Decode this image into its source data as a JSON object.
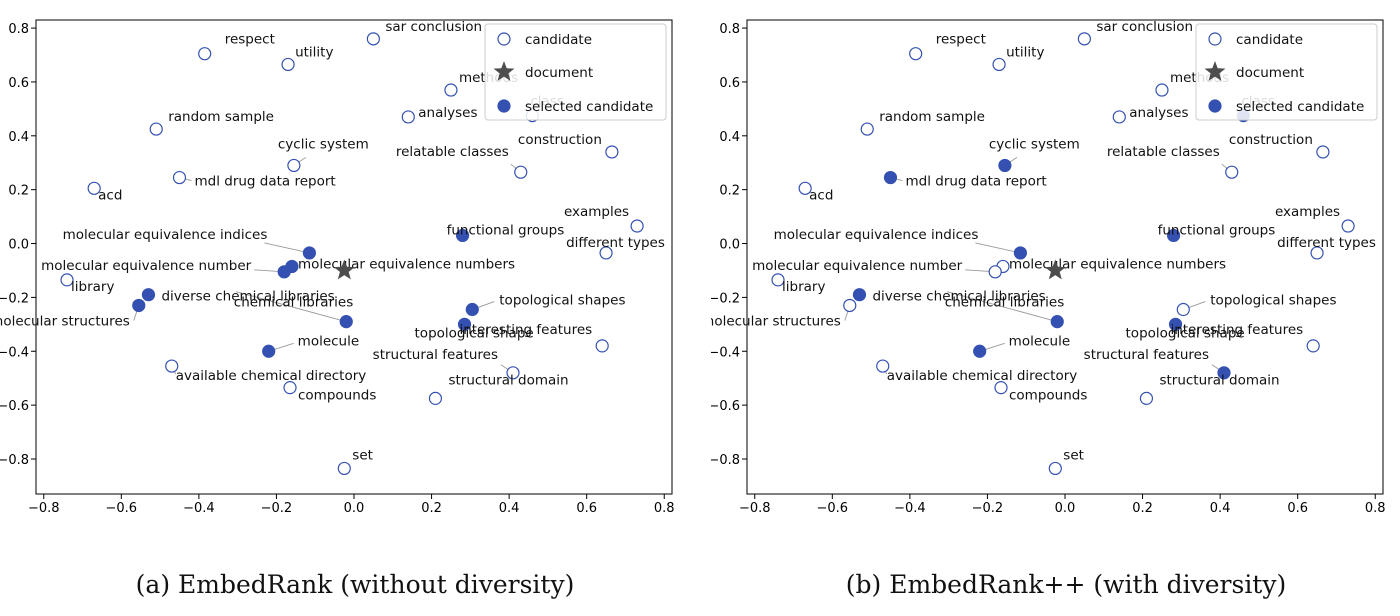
{
  "colors": {
    "marker": "#3451b2",
    "star": "#4d4d4d",
    "leader": "#999999"
  },
  "legend": {
    "candidate": "candidate",
    "document": "document",
    "selected": "selected candidate"
  },
  "captions": {
    "a": "(a) EmbedRank (without diversity)",
    "b": "(b) EmbedRank++ (with diversity)"
  },
  "chart_data": [
    {
      "type": "scatter",
      "xlim": [
        -0.82,
        0.82
      ],
      "ylim": [
        -0.93,
        0.83
      ],
      "xticks": [
        -0.8,
        -0.6,
        -0.4,
        -0.2,
        0.0,
        0.2,
        0.4,
        0.6,
        0.8
      ],
      "yticks": [
        -0.8,
        -0.6,
        -0.4,
        -0.2,
        0.0,
        0.2,
        0.4,
        0.6,
        0.8
      ],
      "xtick_labels": [
        "−0.8",
        "−0.6",
        "−0.4",
        "−0.2",
        "0.0",
        "0.2",
        "0.4",
        "0.6",
        "0.8"
      ],
      "ytick_labels": [
        "−0.8",
        "−0.6",
        "−0.4",
        "−0.2",
        "0.0",
        "0.2",
        "0.4",
        "0.6",
        "0.8"
      ],
      "legend_position": "top-right",
      "document": {
        "x": -0.025,
        "y": -0.1,
        "label": "document"
      },
      "points": [
        {
          "label": "respect",
          "x": -0.385,
          "y": 0.705,
          "selected": false
        },
        {
          "label": "utility",
          "x": -0.17,
          "y": 0.665,
          "selected": false
        },
        {
          "label": "sar conclusion",
          "x": 0.05,
          "y": 0.76,
          "selected": false
        },
        {
          "label": "methods",
          "x": 0.25,
          "y": 0.57,
          "selected": false
        },
        {
          "label": "analyses",
          "x": 0.14,
          "y": 0.47,
          "selected": false
        },
        {
          "label": "class",
          "x": 0.46,
          "y": 0.475,
          "selected": false
        },
        {
          "label": "random sample",
          "x": -0.51,
          "y": 0.425,
          "selected": false
        },
        {
          "label": "cyclic system",
          "x": -0.155,
          "y": 0.29,
          "selected": false
        },
        {
          "label": "construction",
          "x": 0.665,
          "y": 0.34,
          "selected": false
        },
        {
          "label": "relatable classes",
          "x": 0.43,
          "y": 0.265,
          "selected": false
        },
        {
          "label": "mdl drug data report",
          "x": -0.45,
          "y": 0.245,
          "selected": false
        },
        {
          "label": "acd",
          "x": -0.67,
          "y": 0.205,
          "selected": false
        },
        {
          "label": "examples",
          "x": 0.73,
          "y": 0.065,
          "selected": false
        },
        {
          "label": "functional groups",
          "x": 0.28,
          "y": 0.03,
          "selected": true
        },
        {
          "label": "different types",
          "x": 0.65,
          "y": -0.035,
          "selected": false
        },
        {
          "label": "molecular equivalence indices",
          "x": -0.115,
          "y": -0.035,
          "selected": true
        },
        {
          "label": "molecular equivalence numbers",
          "x": -0.16,
          "y": -0.085,
          "selected": true
        },
        {
          "label": "molecular equivalence number",
          "x": -0.18,
          "y": -0.105,
          "selected": true
        },
        {
          "label": "library",
          "x": -0.74,
          "y": -0.135,
          "selected": false
        },
        {
          "label": "diverse chemical libraries",
          "x": -0.53,
          "y": -0.19,
          "selected": true
        },
        {
          "label": "molecular structures",
          "x": -0.555,
          "y": -0.23,
          "selected": true
        },
        {
          "label": "topological shapes",
          "x": 0.305,
          "y": -0.245,
          "selected": true
        },
        {
          "label": "chemical libraries",
          "x": -0.02,
          "y": -0.29,
          "selected": true
        },
        {
          "label": "topological shape",
          "x": 0.285,
          "y": -0.3,
          "selected": true
        },
        {
          "label": "interesting features",
          "x": 0.64,
          "y": -0.38,
          "selected": false
        },
        {
          "label": "molecule",
          "x": -0.22,
          "y": -0.4,
          "selected": true
        },
        {
          "label": "structural features",
          "x": 0.41,
          "y": -0.48,
          "selected": false
        },
        {
          "label": "available chemical directory",
          "x": -0.47,
          "y": -0.455,
          "selected": false
        },
        {
          "label": "compounds",
          "x": -0.165,
          "y": -0.535,
          "selected": false
        },
        {
          "label": "structural domain",
          "x": 0.21,
          "y": -0.575,
          "selected": false
        },
        {
          "label": "set",
          "x": -0.025,
          "y": -0.835,
          "selected": false
        }
      ]
    },
    {
      "type": "scatter",
      "xlim": [
        -0.82,
        0.82
      ],
      "ylim": [
        -0.93,
        0.83
      ],
      "xticks": [
        -0.8,
        -0.6,
        -0.4,
        -0.2,
        0.0,
        0.2,
        0.4,
        0.6,
        0.8
      ],
      "yticks": [
        -0.8,
        -0.6,
        -0.4,
        -0.2,
        0.0,
        0.2,
        0.4,
        0.6,
        0.8
      ],
      "xtick_labels": [
        "−0.8",
        "−0.6",
        "−0.4",
        "−0.2",
        "0.0",
        "0.2",
        "0.4",
        "0.6",
        "0.8"
      ],
      "ytick_labels": [
        "−0.8",
        "−0.6",
        "−0.4",
        "−0.2",
        "0.0",
        "0.2",
        "0.4",
        "0.6",
        "0.8"
      ],
      "legend_position": "top-right",
      "document": {
        "x": -0.025,
        "y": -0.1,
        "label": "document"
      },
      "points": [
        {
          "label": "respect",
          "x": -0.385,
          "y": 0.705,
          "selected": false
        },
        {
          "label": "utility",
          "x": -0.17,
          "y": 0.665,
          "selected": false
        },
        {
          "label": "sar conclusion",
          "x": 0.05,
          "y": 0.76,
          "selected": false
        },
        {
          "label": "methods",
          "x": 0.25,
          "y": 0.57,
          "selected": false
        },
        {
          "label": "analyses",
          "x": 0.14,
          "y": 0.47,
          "selected": false
        },
        {
          "label": "class",
          "x": 0.46,
          "y": 0.475,
          "selected": true
        },
        {
          "label": "random sample",
          "x": -0.51,
          "y": 0.425,
          "selected": false
        },
        {
          "label": "cyclic system",
          "x": -0.155,
          "y": 0.29,
          "selected": true
        },
        {
          "label": "construction",
          "x": 0.665,
          "y": 0.34,
          "selected": false
        },
        {
          "label": "relatable classes",
          "x": 0.43,
          "y": 0.265,
          "selected": false
        },
        {
          "label": "mdl drug data report",
          "x": -0.45,
          "y": 0.245,
          "selected": true
        },
        {
          "label": "acd",
          "x": -0.67,
          "y": 0.205,
          "selected": false
        },
        {
          "label": "examples",
          "x": 0.73,
          "y": 0.065,
          "selected": false
        },
        {
          "label": "functional groups",
          "x": 0.28,
          "y": 0.03,
          "selected": true
        },
        {
          "label": "different types",
          "x": 0.65,
          "y": -0.035,
          "selected": false
        },
        {
          "label": "molecular equivalence indices",
          "x": -0.115,
          "y": -0.035,
          "selected": true
        },
        {
          "label": "molecular equivalence numbers",
          "x": -0.16,
          "y": -0.085,
          "selected": false
        },
        {
          "label": "molecular equivalence number",
          "x": -0.18,
          "y": -0.105,
          "selected": false
        },
        {
          "label": "library",
          "x": -0.74,
          "y": -0.135,
          "selected": false
        },
        {
          "label": "diverse chemical libraries",
          "x": -0.53,
          "y": -0.19,
          "selected": true
        },
        {
          "label": "molecular structures",
          "x": -0.555,
          "y": -0.23,
          "selected": false
        },
        {
          "label": "topological shapes",
          "x": 0.305,
          "y": -0.245,
          "selected": false
        },
        {
          "label": "chemical libraries",
          "x": -0.02,
          "y": -0.29,
          "selected": true
        },
        {
          "label": "topological shape",
          "x": 0.285,
          "y": -0.3,
          "selected": true
        },
        {
          "label": "interesting features",
          "x": 0.64,
          "y": -0.38,
          "selected": false
        },
        {
          "label": "molecule",
          "x": -0.22,
          "y": -0.4,
          "selected": true
        },
        {
          "label": "structural features",
          "x": 0.41,
          "y": -0.48,
          "selected": true
        },
        {
          "label": "available chemical directory",
          "x": -0.47,
          "y": -0.455,
          "selected": false
        },
        {
          "label": "compounds",
          "x": -0.165,
          "y": -0.535,
          "selected": false
        },
        {
          "label": "structural domain",
          "x": 0.21,
          "y": -0.575,
          "selected": false
        },
        {
          "label": "set",
          "x": -0.025,
          "y": -0.835,
          "selected": false
        }
      ]
    }
  ]
}
